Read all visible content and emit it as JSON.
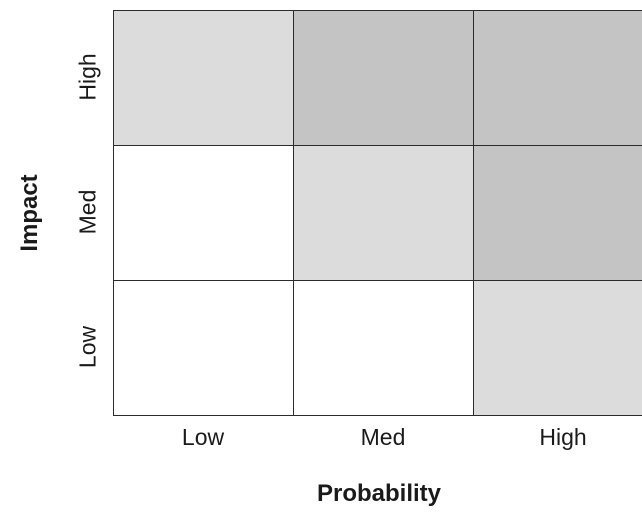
{
  "chart_data": {
    "type": "heatmap",
    "xlabel": "Probability",
    "ylabel": "Impact",
    "x_categories": [
      "Low",
      "Med",
      "High"
    ],
    "y_categories": [
      "High",
      "Med",
      "Low"
    ],
    "risk_levels": [
      [
        1,
        2,
        2
      ],
      [
        0,
        1,
        2
      ],
      [
        0,
        0,
        1
      ]
    ],
    "colors": [
      "#ffffff",
      "#dcdcdd",
      "#c4c4c5"
    ],
    "grid": true,
    "legend": "none"
  }
}
